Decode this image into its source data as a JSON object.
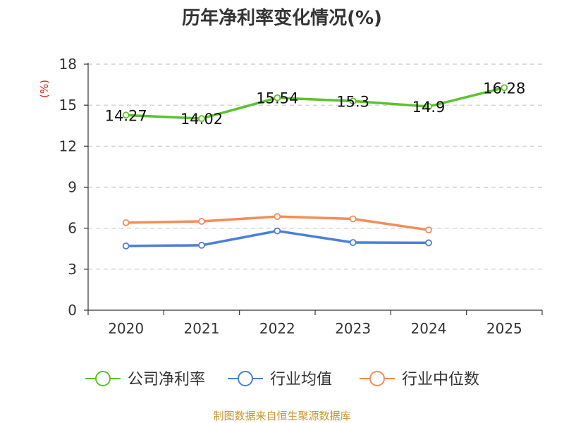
{
  "chart_data": {
    "type": "line",
    "title": "历年净利率变化情况(%)",
    "ylabel": "(%)",
    "xlabel": "",
    "categories": [
      "2020",
      "2021",
      "2022",
      "2023",
      "2024",
      "2025"
    ],
    "ylim": [
      0,
      18
    ],
    "yticks": [
      0,
      3,
      6,
      9,
      12,
      15,
      18
    ],
    "grid": true,
    "legend_position": "bottom",
    "series": [
      {
        "name": "公司净利率",
        "color": "#5cc22d",
        "values": [
          14.27,
          14.02,
          15.54,
          15.3,
          14.9,
          16.28
        ],
        "show_labels": true
      },
      {
        "name": "行业均值",
        "color": "#4b7fd9",
        "values": [
          4.7,
          4.75,
          5.8,
          4.95,
          4.93,
          null
        ],
        "show_labels": false
      },
      {
        "name": "行业中位数",
        "color": "#f58c55",
        "values": [
          6.4,
          6.5,
          6.85,
          6.68,
          5.87,
          null
        ],
        "show_labels": false
      }
    ],
    "source": "制图数据来自恒生聚源数据库"
  }
}
